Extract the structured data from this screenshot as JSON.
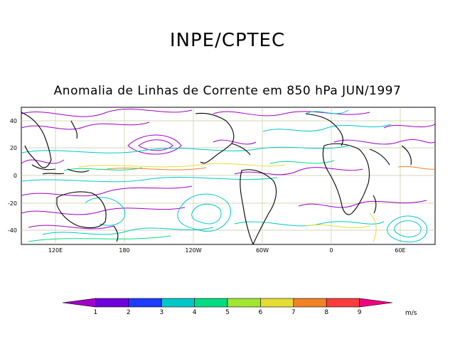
{
  "title": "INPE/CPTEC",
  "subtitle": "Anomalia de Linhas de Corrente em 850 hPa JUN/1997",
  "map": {
    "lon_labels": [
      "120E",
      "180",
      "120W",
      "60W",
      "0",
      "60E"
    ],
    "lat_labels": [
      "40",
      "20",
      "0",
      "-20",
      "-40"
    ]
  },
  "colorbar": {
    "unit": "m/s",
    "labels": [
      "1",
      "2",
      "3",
      "4",
      "5",
      "6",
      "7",
      "8",
      "9"
    ],
    "colors": [
      "#a000c8",
      "#6e00dc",
      "#1e3cff",
      "#00c8c8",
      "#00dc82",
      "#a0e632",
      "#e6dc32",
      "#f08228",
      "#fa3c3c",
      "#f00082"
    ]
  },
  "streamline_colors": {
    "weak": "#a000c8",
    "moderate": "#00c8c8",
    "strong": "#e6dc32",
    "very_strong": "#f08228"
  }
}
